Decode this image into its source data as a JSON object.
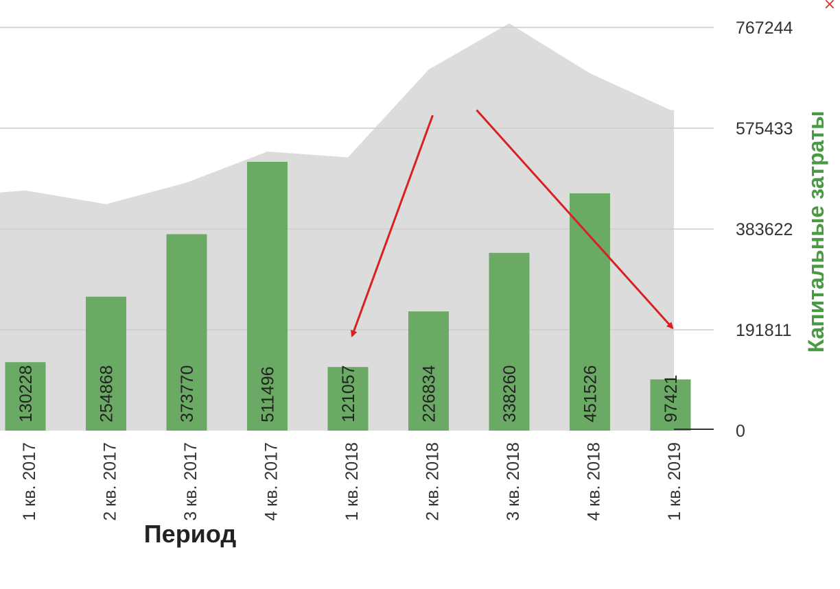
{
  "chart_data": {
    "type": "bar",
    "categories": [
      "1 кв. 2017",
      "2 кв. 2017",
      "3 кв. 2017",
      "4 кв. 2017",
      "1 кв. 2018",
      "2 кв. 2018",
      "3 кв. 2018",
      "4 кв. 2018",
      "1 кв. 2019"
    ],
    "series": [
      {
        "name": "Капитальные затраты",
        "type": "bar",
        "values": [
          130228,
          254868,
          373770,
          511496,
          121057,
          226834,
          338260,
          451526,
          97421
        ]
      },
      {
        "type": "area",
        "values": [
          457000,
          431000,
          472000,
          531000,
          520000,
          687000,
          775000,
          680000,
          610000
        ]
      }
    ],
    "xlabel": "Период",
    "ylabel": "Капитальные затраты",
    "y_ticks": [
      "0",
      "191811",
      "383622",
      "575433",
      "767244"
    ],
    "ylim": [
      0,
      767244
    ],
    "grid": true,
    "colors": {
      "bar": "#6aaa64",
      "area": "#dcdcdc",
      "axis_title": "#4a9a44",
      "arrow": "#d92020",
      "grid": "#cccccc"
    },
    "annotations": [
      {
        "type": "arrow",
        "from_category": "2 кв. 2018",
        "to_category": "1 кв. 2018",
        "from_value": 600000,
        "to_value": 180000
      },
      {
        "type": "arrow",
        "from_category": "2 кв. 2018",
        "to_category": "1 кв. 2019",
        "from_value": 610000,
        "to_value": 195000
      }
    ]
  },
  "ui": {
    "close_icon": "close-icon",
    "close_label": "×"
  }
}
